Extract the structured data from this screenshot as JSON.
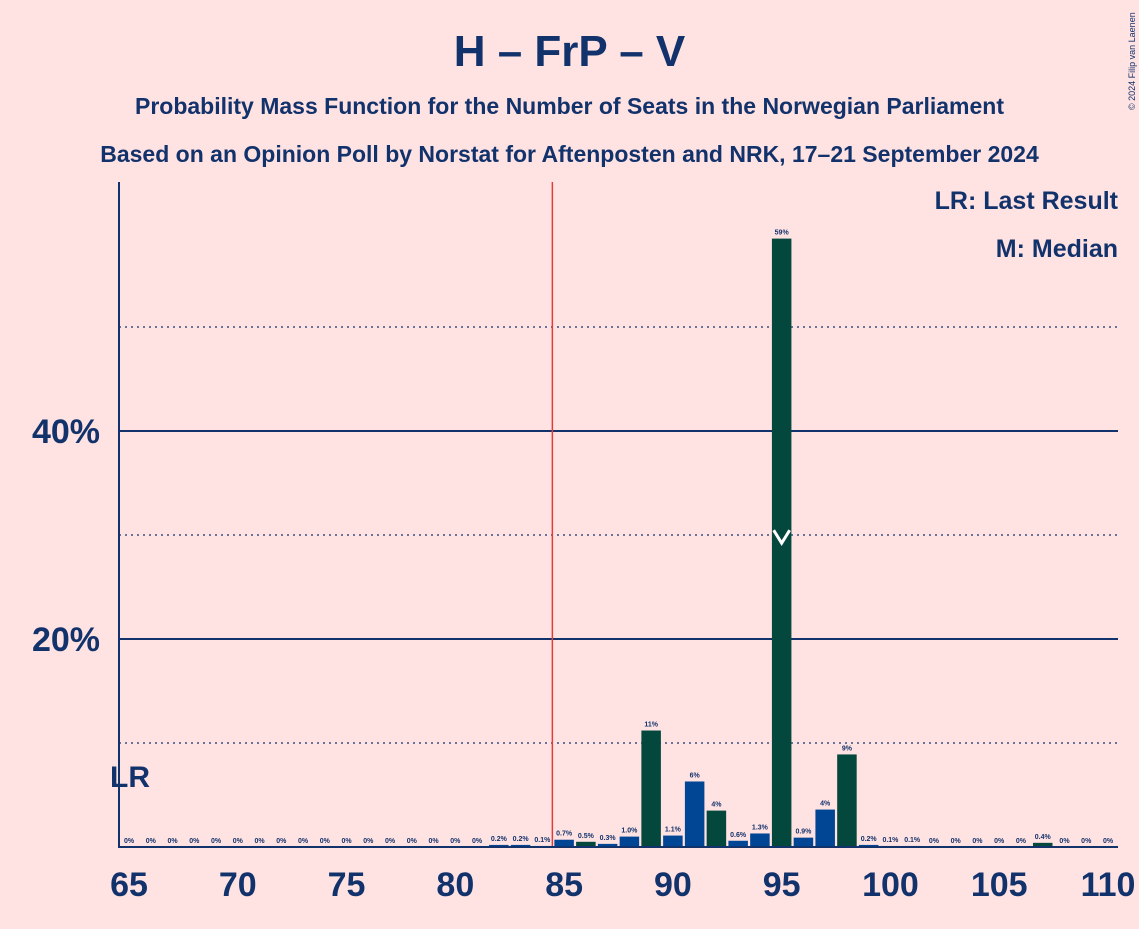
{
  "copyright": "© 2024 Filip van Laenen",
  "colors": {
    "background": "#FFE2E2",
    "text": "#12326B",
    "dark_green": "#04473C",
    "blue": "#014695",
    "lr_line": "#E23B3B"
  },
  "chart_data": {
    "type": "bar",
    "title": "H – FrP – V",
    "subtitle1": "Probability Mass Function for the Number of Seats in the Norwegian Parliament",
    "subtitle2": "Based on an Opinion Poll by Norstat for Aftenposten and NRK, 17–21 September 2024",
    "legend": [
      "LR: Last Result",
      "M: Median"
    ],
    "legend_position": "top-right",
    "lr_label": "LR",
    "last_result": 85,
    "median": 95,
    "xlim": [
      65,
      110
    ],
    "ylim": [
      0,
      64
    ],
    "x_ticks": [
      {
        "value": 65,
        "label": "65"
      },
      {
        "value": 70,
        "label": "70"
      },
      {
        "value": 75,
        "label": "75"
      },
      {
        "value": 80,
        "label": "80"
      },
      {
        "value": 85,
        "label": "85"
      },
      {
        "value": 90,
        "label": "90"
      },
      {
        "value": 95,
        "label": "95"
      },
      {
        "value": 100,
        "label": "100"
      },
      {
        "value": 105,
        "label": "105"
      },
      {
        "value": 110,
        "label": "110"
      }
    ],
    "y_ticks": [
      {
        "value": 20,
        "label": "20%"
      },
      {
        "value": 40,
        "label": "40%"
      }
    ],
    "y_dotted": [
      10,
      30,
      50
    ],
    "bars": [
      {
        "x": 65,
        "value": 0,
        "label": "0%",
        "color": "blue"
      },
      {
        "x": 66,
        "value": 0,
        "label": "0%",
        "color": "blue"
      },
      {
        "x": 67,
        "value": 0,
        "label": "0%",
        "color": "blue"
      },
      {
        "x": 68,
        "value": 0,
        "label": "0%",
        "color": "blue"
      },
      {
        "x": 69,
        "value": 0,
        "label": "0%",
        "color": "blue"
      },
      {
        "x": 70,
        "value": 0,
        "label": "0%",
        "color": "blue"
      },
      {
        "x": 71,
        "value": 0,
        "label": "0%",
        "color": "blue"
      },
      {
        "x": 72,
        "value": 0,
        "label": "0%",
        "color": "blue"
      },
      {
        "x": 73,
        "value": 0,
        "label": "0%",
        "color": "blue"
      },
      {
        "x": 74,
        "value": 0,
        "label": "0%",
        "color": "blue"
      },
      {
        "x": 75,
        "value": 0,
        "label": "0%",
        "color": "blue"
      },
      {
        "x": 76,
        "value": 0,
        "label": "0%",
        "color": "blue"
      },
      {
        "x": 77,
        "value": 0,
        "label": "0%",
        "color": "blue"
      },
      {
        "x": 78,
        "value": 0,
        "label": "0%",
        "color": "blue"
      },
      {
        "x": 79,
        "value": 0,
        "label": "0%",
        "color": "blue"
      },
      {
        "x": 80,
        "value": 0,
        "label": "0%",
        "color": "blue"
      },
      {
        "x": 81,
        "value": 0,
        "label": "0%",
        "color": "blue"
      },
      {
        "x": 82,
        "value": 0.2,
        "label": "0.2%",
        "color": "blue"
      },
      {
        "x": 83,
        "value": 0.2,
        "label": "0.2%",
        "color": "blue"
      },
      {
        "x": 84,
        "value": 0.1,
        "label": "0.1%",
        "color": "blue"
      },
      {
        "x": 85,
        "value": 0.7,
        "label": "0.7%",
        "color": "blue"
      },
      {
        "x": 86,
        "value": 0.5,
        "label": "0.5%",
        "color": "green"
      },
      {
        "x": 87,
        "value": 0.3,
        "label": "0.3%",
        "color": "blue"
      },
      {
        "x": 88,
        "value": 1.0,
        "label": "1.0%",
        "color": "blue"
      },
      {
        "x": 89,
        "value": 11.2,
        "label": "11%",
        "color": "green"
      },
      {
        "x": 90,
        "value": 1.1,
        "label": "1.1%",
        "color": "blue"
      },
      {
        "x": 91,
        "value": 6.3,
        "label": "6%",
        "color": "blue"
      },
      {
        "x": 92,
        "value": 3.5,
        "label": "4%",
        "color": "green"
      },
      {
        "x": 93,
        "value": 0.6,
        "label": "0.6%",
        "color": "blue"
      },
      {
        "x": 94,
        "value": 1.3,
        "label": "1.3%",
        "color": "blue"
      },
      {
        "x": 95,
        "value": 58.5,
        "label": "59%",
        "color": "green"
      },
      {
        "x": 96,
        "value": 0.9,
        "label": "0.9%",
        "color": "blue"
      },
      {
        "x": 97,
        "value": 3.6,
        "label": "4%",
        "color": "blue"
      },
      {
        "x": 98,
        "value": 8.9,
        "label": "9%",
        "color": "green"
      },
      {
        "x": 99,
        "value": 0.2,
        "label": "0.2%",
        "color": "blue"
      },
      {
        "x": 100,
        "value": 0.1,
        "label": "0.1%",
        "color": "blue"
      },
      {
        "x": 101,
        "value": 0.1,
        "label": "0.1%",
        "color": "blue"
      },
      {
        "x": 102,
        "value": 0,
        "label": "0%",
        "color": "blue"
      },
      {
        "x": 103,
        "value": 0,
        "label": "0%",
        "color": "blue"
      },
      {
        "x": 104,
        "value": 0,
        "label": "0%",
        "color": "blue"
      },
      {
        "x": 105,
        "value": 0,
        "label": "0%",
        "color": "blue"
      },
      {
        "x": 106,
        "value": 0,
        "label": "0%",
        "color": "blue"
      },
      {
        "x": 107,
        "value": 0.4,
        "label": "0.4%",
        "color": "green"
      },
      {
        "x": 108,
        "value": 0,
        "label": "0%",
        "color": "blue"
      },
      {
        "x": 109,
        "value": 0,
        "label": "0%",
        "color": "blue"
      },
      {
        "x": 110,
        "value": 0,
        "label": "0%",
        "color": "blue"
      }
    ]
  }
}
